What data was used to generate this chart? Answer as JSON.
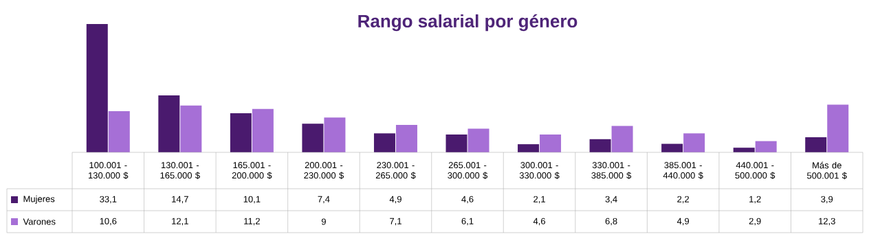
{
  "chart_data": {
    "type": "bar",
    "title": "Rango salarial por género",
    "categories": [
      "100.001 - 130.000 $",
      "130.001 - 165.000 $",
      "165.001 - 200.000 $",
      "200.001 - 230.000 $",
      "230.001 - 265.000 $",
      "265.001 - 300.000 $",
      "300.001 - 330.000 $",
      "330.001 - 385.000 $",
      "385.001 - 440.000 $",
      "440.001 - 500.000 $",
      "Más de 500.001 $"
    ],
    "series": [
      {
        "name": "Mujeres",
        "color": "#4a1a6e",
        "values": [
          33.1,
          14.7,
          10.1,
          7.4,
          4.9,
          4.6,
          2.1,
          3.4,
          2.2,
          1.2,
          3.9
        ],
        "value_labels": [
          "33,1",
          "14,7",
          "10,1",
          "7,4",
          "4,9",
          "4,6",
          "2,1",
          "3,4",
          "2,2",
          "1,2",
          "3,9"
        ]
      },
      {
        "name": "Varones",
        "color": "#a66fd6",
        "values": [
          10.6,
          12.1,
          11.2,
          9,
          7.1,
          6.1,
          4.6,
          6.8,
          4.9,
          2.9,
          12.3
        ],
        "value_labels": [
          "10,6",
          "12,1",
          "11,2",
          "9",
          "7,1",
          "6,1",
          "4,6",
          "6,8",
          "4,9",
          "2,9",
          "12,3"
        ]
      }
    ],
    "legend": "left",
    "grid": false
  }
}
